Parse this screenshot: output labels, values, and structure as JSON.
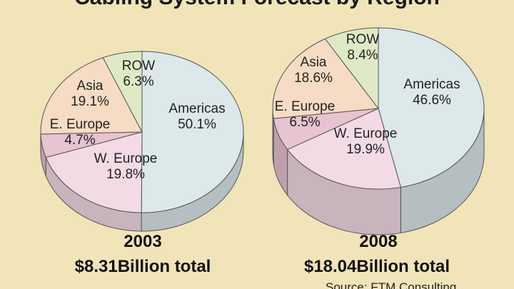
{
  "title": "Cabling System Forecast by Region",
  "source": "Source: FTM Consulting",
  "colors": {
    "background": "#f1e4b8",
    "Americas": "#dde8ea",
    "W. Europe": "#f3dbe6",
    "E. Europe": "#e8c3d2",
    "Asia": "#f6dcc4",
    "ROW": "#dfe9c6",
    "outline": "#555555"
  },
  "chart_data": [
    {
      "type": "pie",
      "year": "2003",
      "total": "$8.31Billion total",
      "slices": [
        {
          "label": "Americas",
          "value": 50.1,
          "value_text": "50.1%"
        },
        {
          "label": "W. Europe",
          "value": 19.8,
          "value_text": "19.8%"
        },
        {
          "label": "E. Europe",
          "value": 4.7,
          "value_text": "4.7%"
        },
        {
          "label": "Asia",
          "value": 19.1,
          "value_text": "19.1%"
        },
        {
          "label": "ROW",
          "value": 6.3,
          "value_text": "6.3%"
        }
      ]
    },
    {
      "type": "pie",
      "year": "2008",
      "total": "$18.04Billion total",
      "slices": [
        {
          "label": "Americas",
          "value": 46.6,
          "value_text": "46.6%"
        },
        {
          "label": "W. Europe",
          "value": 19.9,
          "value_text": "19.9%"
        },
        {
          "label": "E. Europe",
          "value": 6.5,
          "value_text": "6.5%"
        },
        {
          "label": "Asia",
          "value": 18.6,
          "value_text": "18.6%"
        },
        {
          "label": "ROW",
          "value": 8.4,
          "value_text": "8.4%"
        }
      ]
    }
  ]
}
